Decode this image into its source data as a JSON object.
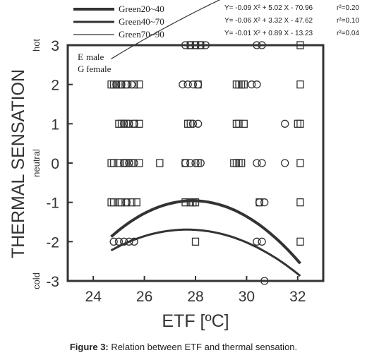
{
  "chart_data": {
    "type": "scatter",
    "title": "",
    "xlabel": "ETF [ºC]",
    "ylabel": "THERMAL SENSATION",
    "xlim": [
      23,
      33
    ],
    "ylim": [
      -3,
      3
    ],
    "xticks": [
      "24",
      "26",
      "28",
      "30",
      "32"
    ],
    "yticks": [
      "-3",
      "-2",
      "-1",
      "0",
      "1",
      "2",
      "3"
    ],
    "scale_words": {
      "top": "hot",
      "middle": "neutral",
      "bottom": "cold"
    },
    "marker_legend": [
      {
        "symbol": "E",
        "label": "male"
      },
      {
        "symbol": "G",
        "label": "female"
      }
    ],
    "series": [
      {
        "name": "Green20~40",
        "equation": "Y= -0.09 X² + 5.02 X - 70.96",
        "r2": "r²=0.20",
        "coefficients": [
          -0.09,
          5.02,
          -70.96
        ],
        "x_range": [
          24.7,
          32.1
        ],
        "color": "#333333"
      },
      {
        "name": "Green40~70",
        "equation": "Y= -0.06 X² + 3.32 X - 47.62",
        "r2": "r²=0.10",
        "coefficients": [
          -0.06,
          3.32,
          -47.62
        ],
        "x_range": [
          24.7,
          32.1
        ],
        "color": "#333333"
      },
      {
        "name": "Green70~90",
        "equation": "Y= -0.01 X² + 0.89 X - 13.23",
        "r2": "r²=0.04",
        "coefficients": [
          -0.01,
          0.89,
          -13.23
        ],
        "x_range": [
          24.7,
          32.1
        ],
        "color": "#333333"
      }
    ],
    "points_male_square": [
      [
        24.7,
        2
      ],
      [
        24.8,
        2
      ],
      [
        24.9,
        2
      ],
      [
        25.0,
        2
      ],
      [
        25.1,
        2
      ],
      [
        25.3,
        2
      ],
      [
        25.6,
        2
      ],
      [
        25.8,
        2
      ],
      [
        28.1,
        2
      ],
      [
        29.6,
        2
      ],
      [
        29.7,
        2
      ],
      [
        29.8,
        2
      ],
      [
        29.9,
        2
      ],
      [
        32.1,
        2
      ],
      [
        25.0,
        1
      ],
      [
        25.1,
        1
      ],
      [
        25.2,
        1
      ],
      [
        25.3,
        1
      ],
      [
        25.6,
        1
      ],
      [
        25.8,
        1
      ],
      [
        27.7,
        1
      ],
      [
        27.8,
        1
      ],
      [
        29.6,
        1
      ],
      [
        29.7,
        1
      ],
      [
        29.9,
        1
      ],
      [
        32.0,
        1
      ],
      [
        32.1,
        1
      ],
      [
        24.7,
        0
      ],
      [
        24.8,
        0
      ],
      [
        25.0,
        0
      ],
      [
        25.2,
        0
      ],
      [
        25.3,
        0
      ],
      [
        25.5,
        0
      ],
      [
        25.8,
        0
      ],
      [
        26.6,
        0
      ],
      [
        27.6,
        0
      ],
      [
        28.1,
        0
      ],
      [
        29.5,
        0
      ],
      [
        29.6,
        0
      ],
      [
        29.7,
        0
      ],
      [
        29.8,
        0
      ],
      [
        32.1,
        0
      ],
      [
        24.7,
        -1
      ],
      [
        24.8,
        -1
      ],
      [
        25.0,
        -1
      ],
      [
        25.1,
        -1
      ],
      [
        25.3,
        -1
      ],
      [
        25.5,
        -1
      ],
      [
        25.7,
        -1
      ],
      [
        27.6,
        -1
      ],
      [
        27.8,
        -1
      ],
      [
        27.9,
        -1
      ],
      [
        28.0,
        -1
      ],
      [
        30.5,
        -1
      ],
      [
        32.1,
        -1
      ],
      [
        28.0,
        -2
      ],
      [
        32.1,
        -2
      ],
      [
        27.8,
        3
      ],
      [
        28.0,
        3
      ],
      [
        28.2,
        3
      ],
      [
        32.1,
        3
      ]
    ],
    "points_female_circle": [
      [
        24.9,
        2
      ],
      [
        25.1,
        2
      ],
      [
        25.3,
        2
      ],
      [
        25.5,
        2
      ],
      [
        27.5,
        2
      ],
      [
        27.7,
        2
      ],
      [
        27.9,
        2
      ],
      [
        28.1,
        2
      ],
      [
        30.2,
        2
      ],
      [
        30.4,
        2
      ],
      [
        25.2,
        1
      ],
      [
        25.4,
        1
      ],
      [
        25.6,
        1
      ],
      [
        27.9,
        1
      ],
      [
        28.1,
        1
      ],
      [
        31.5,
        1
      ],
      [
        25.2,
        0
      ],
      [
        25.4,
        0
      ],
      [
        25.6,
        0
      ],
      [
        27.6,
        0
      ],
      [
        27.8,
        0
      ],
      [
        28.0,
        0
      ],
      [
        28.2,
        0
      ],
      [
        30.4,
        0
      ],
      [
        30.6,
        0
      ],
      [
        31.5,
        0
      ],
      [
        25.3,
        -1
      ],
      [
        30.5,
        -1
      ],
      [
        30.7,
        -1
      ],
      [
        24.8,
        -2
      ],
      [
        25.0,
        -2
      ],
      [
        25.2,
        -2
      ],
      [
        25.4,
        -2
      ],
      [
        25.6,
        -2
      ],
      [
        30.4,
        -2
      ],
      [
        30.6,
        -2
      ],
      [
        27.6,
        3
      ],
      [
        27.8,
        3
      ],
      [
        28.0,
        3
      ],
      [
        28.2,
        3
      ],
      [
        28.4,
        3
      ],
      [
        30.4,
        3
      ],
      [
        30.6,
        3
      ],
      [
        30.7,
        -3
      ]
    ]
  },
  "caption": {
    "label": "Figure 3:",
    "text": " Relation between ETF and thermal sensation."
  }
}
